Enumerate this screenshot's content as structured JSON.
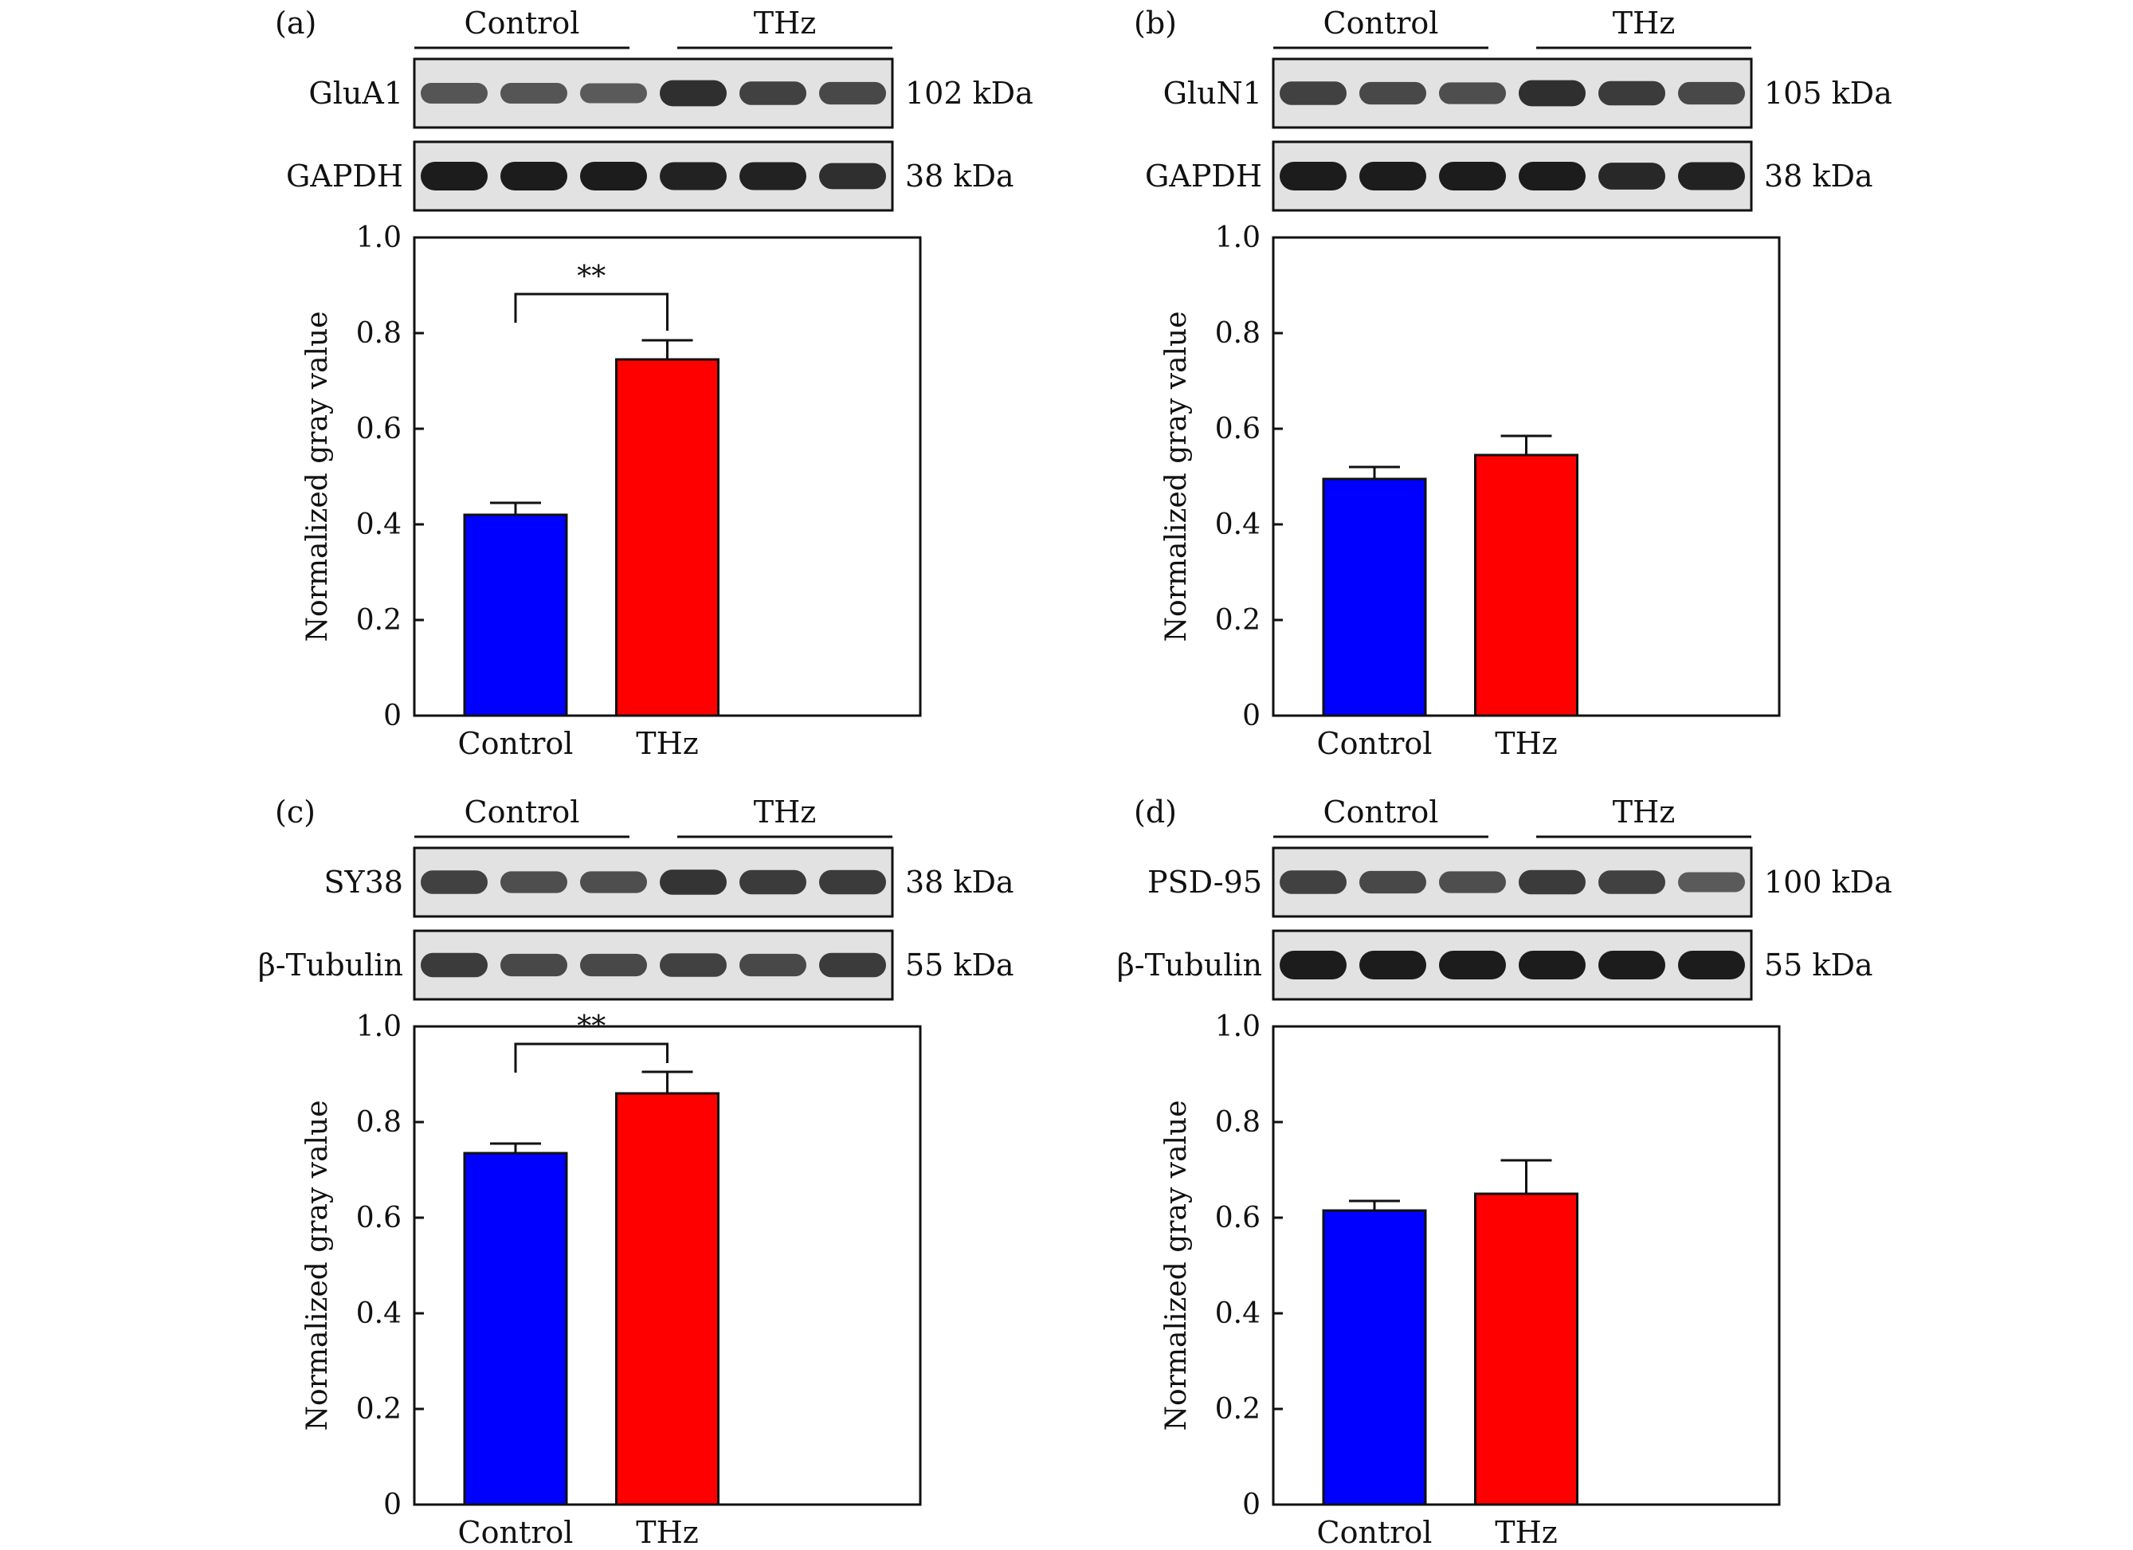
{
  "colors": {
    "control": "#0000ff",
    "thz": "#ff0000",
    "axis": "#111111",
    "blot_bg": "#e2e2e2",
    "band": "#111111"
  },
  "chart_data": [
    {
      "panel": "(a)",
      "type": "bar",
      "group_labels": [
        "Control",
        "THz"
      ],
      "blots": [
        {
          "protein": "GluA1",
          "kda": "102 kDa",
          "band_intensity": [
            0.55,
            0.55,
            0.5,
            0.85,
            0.7,
            0.65
          ]
        },
        {
          "protein": "GAPDH",
          "kda": "38 kDa",
          "band_intensity": [
            1,
            1,
            1,
            0.95,
            0.95,
            0.85
          ]
        }
      ],
      "categories": [
        "Control",
        "THz"
      ],
      "values": [
        0.42,
        0.745
      ],
      "errors": [
        0.025,
        0.04
      ],
      "ylabel": "Normalized gray value",
      "ylim": [
        0,
        1.0
      ],
      "yticks": [
        "0",
        "0.2",
        "0.4",
        "0.6",
        "0.8",
        "1.0"
      ],
      "significance": "**"
    },
    {
      "panel": "(b)",
      "type": "bar",
      "group_labels": [
        "Control",
        "THz"
      ],
      "blots": [
        {
          "protein": "GluN1",
          "kda": "105 kDa",
          "band_intensity": [
            0.7,
            0.65,
            0.6,
            0.85,
            0.75,
            0.65
          ]
        },
        {
          "protein": "GAPDH",
          "kda": "38 kDa",
          "band_intensity": [
            1,
            1,
            1,
            1,
            0.9,
            0.95
          ]
        }
      ],
      "categories": [
        "Control",
        "THz"
      ],
      "values": [
        0.495,
        0.545
      ],
      "errors": [
        0.025,
        0.04
      ],
      "ylabel": "Normalized gray value",
      "ylim": [
        0,
        1.0
      ],
      "yticks": [
        "0",
        "0.2",
        "0.4",
        "0.6",
        "0.8",
        "1.0"
      ],
      "significance": ""
    },
    {
      "panel": "(c)",
      "type": "bar",
      "group_labels": [
        "Control",
        "THz"
      ],
      "blots": [
        {
          "protein": "SY38",
          "kda": "38 kDa",
          "band_intensity": [
            0.7,
            0.6,
            0.6,
            0.8,
            0.75,
            0.75
          ]
        },
        {
          "protein": "β-Tubulin",
          "kda": "55 kDa",
          "band_intensity": [
            0.75,
            0.65,
            0.65,
            0.7,
            0.65,
            0.75
          ]
        }
      ],
      "categories": [
        "Control",
        "THz"
      ],
      "values": [
        0.735,
        0.86
      ],
      "errors": [
        0.02,
        0.045
      ],
      "ylabel": "Normalized gray value",
      "ylim": [
        0,
        1.0
      ],
      "yticks": [
        "0",
        "0.2",
        "0.4",
        "0.6",
        "0.8",
        "1.0"
      ],
      "significance": "**"
    },
    {
      "panel": "(d)",
      "type": "bar",
      "group_labels": [
        "Control",
        "THz"
      ],
      "blots": [
        {
          "protein": "PSD-95",
          "kda": "100 kDa",
          "band_intensity": [
            0.7,
            0.65,
            0.6,
            0.75,
            0.7,
            0.5
          ]
        },
        {
          "protein": "β-Tubulin",
          "kda": "55 kDa",
          "band_intensity": [
            1,
            1,
            1,
            1,
            1,
            1
          ]
        }
      ],
      "categories": [
        "Control",
        "THz"
      ],
      "values": [
        0.615,
        0.65
      ],
      "errors": [
        0.02,
        0.07
      ],
      "ylabel": "Normalized gray value",
      "ylim": [
        0,
        1.0
      ],
      "yticks": [
        "0",
        "0.2",
        "0.4",
        "0.6",
        "0.8",
        "1.0"
      ],
      "significance": ""
    }
  ]
}
